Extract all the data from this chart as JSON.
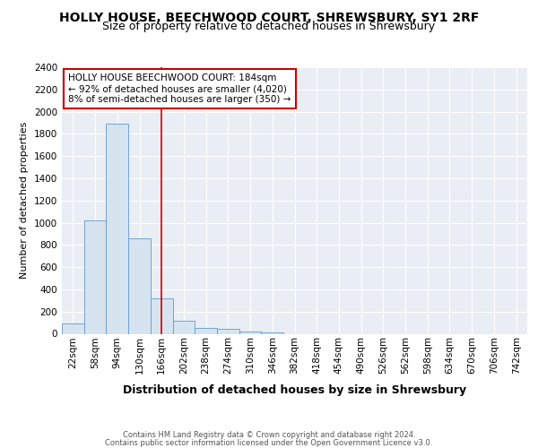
{
  "title": "HOLLY HOUSE, BEECHWOOD COURT, SHREWSBURY, SY1 2RF",
  "subtitle": "Size of property relative to detached houses in Shrewsbury",
  "xlabel": "Distribution of detached houses by size in Shrewsbury",
  "ylabel": "Number of detached properties",
  "footer_line1": "Contains HM Land Registry data © Crown copyright and database right 2024.",
  "footer_line2": "Contains public sector information licensed under the Open Government Licence v3.0.",
  "bar_labels": [
    "22sqm",
    "58sqm",
    "94sqm",
    "130sqm",
    "166sqm",
    "202sqm",
    "238sqm",
    "274sqm",
    "310sqm",
    "346sqm",
    "382sqm",
    "418sqm",
    "454sqm",
    "490sqm",
    "526sqm",
    "562sqm",
    "598sqm",
    "634sqm",
    "670sqm",
    "706sqm",
    "742sqm"
  ],
  "bar_values": [
    90,
    1020,
    1890,
    860,
    320,
    115,
    55,
    42,
    22,
    15,
    0,
    0,
    0,
    0,
    0,
    0,
    0,
    0,
    0,
    0,
    0
  ],
  "bar_color": "#d6e4f0",
  "bar_edge_color": "#6699cc",
  "marker_label_line1": "HOLLY HOUSE BEECHWOOD COURT: 184sqm",
  "marker_label_line2": "← 92% of detached houses are smaller (4,020)",
  "marker_label_line3": "8% of semi-detached houses are larger (350) →",
  "marker_color": "#cc0000",
  "ylim": [
    0,
    2400
  ],
  "yticks": [
    0,
    200,
    400,
    600,
    800,
    1000,
    1200,
    1400,
    1600,
    1800,
    2000,
    2200,
    2400
  ],
  "background_color": "#ffffff",
  "plot_background": "#e8eef4",
  "grid_color": "#ffffff",
  "title_fontsize": 10,
  "subtitle_fontsize": 9,
  "ylabel_fontsize": 8,
  "xlabel_fontsize": 9,
  "footer_fontsize": 6,
  "tick_fontsize": 7.5,
  "annotation_fontsize": 7.5
}
